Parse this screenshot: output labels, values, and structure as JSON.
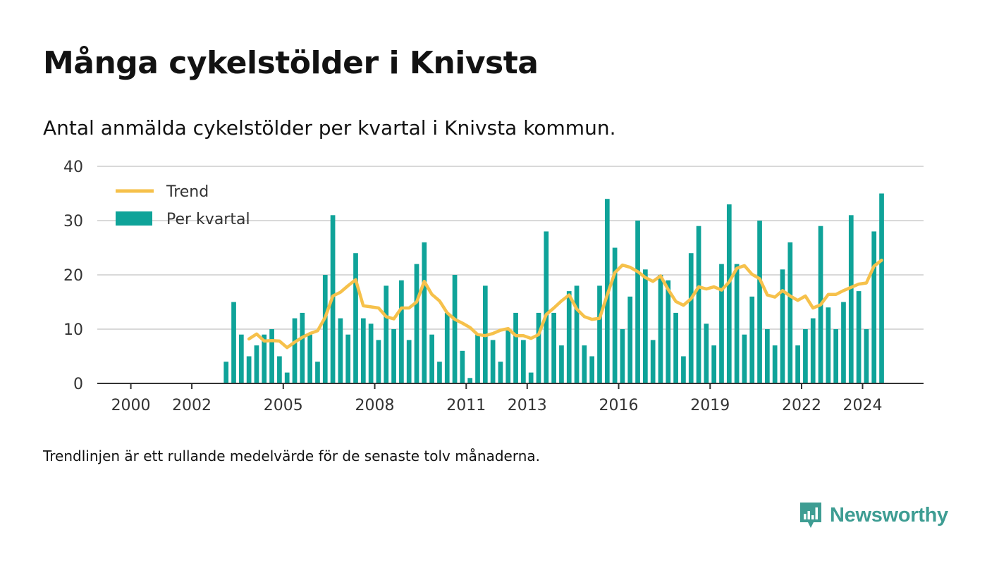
{
  "title": "Många cykelstölder i Knivsta",
  "subtitle": "Antal anmälda cykelstölder per kvartal i Knivsta kommun.",
  "footnote": "Trendlinjen är ett rullande medelvärde för de senaste tolv månaderna.",
  "brand": {
    "name": "Newsworthy",
    "icon": "newsworthy-logo-icon",
    "color": "#3e9d93"
  },
  "chart_data": {
    "type": "bar",
    "title": "Många cykelstölder i Knivsta",
    "xlabel": "",
    "ylabel": "",
    "ylim": [
      0,
      40
    ],
    "yticks": [
      0,
      10,
      20,
      30,
      40
    ],
    "xticks": [
      "2000",
      "2002",
      "2005",
      "2008",
      "2011",
      "2013",
      "2016",
      "2019",
      "2022",
      "2024"
    ],
    "grid": true,
    "legend_position": "top-left",
    "colors": {
      "bars": "#0fa399",
      "trend": "#f6c14b",
      "grid": "#d9d9d9",
      "axis": "#333333"
    },
    "series": [
      {
        "name": "Per kvartal",
        "type": "bar",
        "x": [
          "2003-Q1",
          "2003-Q2",
          "2003-Q3",
          "2003-Q4",
          "2004-Q1",
          "2004-Q2",
          "2004-Q3",
          "2004-Q4",
          "2005-Q1",
          "2005-Q2",
          "2005-Q3",
          "2005-Q4",
          "2006-Q1",
          "2006-Q2",
          "2006-Q3",
          "2006-Q4",
          "2007-Q1",
          "2007-Q2",
          "2007-Q3",
          "2007-Q4",
          "2008-Q1",
          "2008-Q2",
          "2008-Q3",
          "2008-Q4",
          "2009-Q1",
          "2009-Q2",
          "2009-Q3",
          "2009-Q4",
          "2010-Q1",
          "2010-Q2",
          "2010-Q3",
          "2010-Q4",
          "2011-Q1",
          "2011-Q2",
          "2011-Q3",
          "2011-Q4",
          "2012-Q1",
          "2012-Q2",
          "2012-Q3",
          "2012-Q4",
          "2013-Q1",
          "2013-Q2",
          "2013-Q3",
          "2013-Q4",
          "2014-Q1",
          "2014-Q2",
          "2014-Q3",
          "2014-Q4",
          "2015-Q1",
          "2015-Q2",
          "2015-Q3",
          "2015-Q4",
          "2016-Q1",
          "2016-Q2",
          "2016-Q3",
          "2016-Q4",
          "2017-Q1",
          "2017-Q2",
          "2017-Q3",
          "2017-Q4",
          "2018-Q1",
          "2018-Q2",
          "2018-Q3",
          "2018-Q4",
          "2019-Q1",
          "2019-Q2",
          "2019-Q3",
          "2019-Q4",
          "2020-Q1",
          "2020-Q2",
          "2020-Q3",
          "2020-Q4",
          "2021-Q1",
          "2021-Q2",
          "2021-Q3",
          "2021-Q4",
          "2022-Q1",
          "2022-Q2",
          "2022-Q3",
          "2022-Q4",
          "2023-Q1",
          "2023-Q2",
          "2023-Q3",
          "2023-Q4",
          "2024-Q1",
          "2024-Q2",
          "2024-Q3"
        ],
        "values": [
          4,
          15,
          9,
          5,
          7,
          9,
          10,
          5,
          2,
          12,
          13,
          9,
          4,
          20,
          31,
          12,
          9,
          24,
          12,
          11,
          8,
          18,
          10,
          19,
          8,
          22,
          26,
          9,
          4,
          13,
          20,
          6,
          1,
          9,
          18,
          8,
          4,
          10,
          13,
          8,
          2,
          13,
          28,
          13,
          7,
          17,
          18,
          7,
          5,
          18,
          34,
          25,
          10,
          16,
          30,
          21,
          8,
          20,
          19,
          13,
          5,
          24,
          29,
          11,
          7,
          22,
          33,
          22,
          9,
          16,
          30,
          10,
          7,
          21,
          26,
          7,
          10,
          12,
          29,
          14,
          10,
          15,
          31,
          17,
          10,
          28,
          35
        ]
      },
      {
        "name": "Trend",
        "type": "line",
        "x": [
          "2003-Q4",
          "2004-Q1",
          "2004-Q2",
          "2004-Q3",
          "2004-Q4",
          "2005-Q1",
          "2005-Q2",
          "2005-Q3",
          "2005-Q4",
          "2006-Q1",
          "2006-Q2",
          "2006-Q3",
          "2006-Q4",
          "2007-Q1",
          "2007-Q2",
          "2007-Q3",
          "2007-Q4",
          "2008-Q1",
          "2008-Q2",
          "2008-Q3",
          "2008-Q4",
          "2009-Q1",
          "2009-Q2",
          "2009-Q3",
          "2009-Q4",
          "2010-Q1",
          "2010-Q2",
          "2010-Q3",
          "2010-Q4",
          "2011-Q1",
          "2011-Q2",
          "2011-Q3",
          "2011-Q4",
          "2012-Q1",
          "2012-Q2",
          "2012-Q3",
          "2012-Q4",
          "2013-Q1",
          "2013-Q2",
          "2013-Q3",
          "2013-Q4",
          "2014-Q1",
          "2014-Q2",
          "2014-Q3",
          "2014-Q4",
          "2015-Q1",
          "2015-Q2",
          "2015-Q3",
          "2015-Q4",
          "2016-Q1",
          "2016-Q2",
          "2016-Q3",
          "2016-Q4",
          "2017-Q1",
          "2017-Q2",
          "2017-Q3",
          "2017-Q4",
          "2018-Q1",
          "2018-Q2",
          "2018-Q3",
          "2018-Q4",
          "2019-Q1",
          "2019-Q2",
          "2019-Q3",
          "2019-Q4",
          "2020-Q1",
          "2020-Q2",
          "2020-Q3",
          "2020-Q4",
          "2021-Q1",
          "2021-Q2",
          "2021-Q3",
          "2021-Q4",
          "2022-Q1",
          "2022-Q2",
          "2022-Q3",
          "2022-Q4",
          "2023-Q1",
          "2023-Q2",
          "2023-Q3",
          "2023-Q4",
          "2024-Q1",
          "2024-Q2",
          "2024-Q3"
        ],
        "values": [
          8.2,
          9.1,
          7.8,
          7.9,
          7.8,
          6.6,
          7.6,
          8.5,
          9.2,
          9.7,
          12.2,
          16.1,
          16.8,
          18.0,
          19.1,
          14.3,
          14.1,
          13.9,
          12.3,
          11.9,
          13.9,
          13.9,
          15.0,
          18.8,
          16.4,
          15.2,
          13.0,
          11.8,
          11.1,
          10.3,
          9.0,
          8.8,
          9.2,
          9.8,
          10.1,
          8.8,
          8.8,
          8.3,
          9.0,
          12.7,
          13.9,
          15.2,
          16.3,
          13.7,
          12.3,
          11.8,
          12.0,
          16.3,
          20.4,
          21.8,
          21.4,
          20.6,
          19.5,
          18.8,
          19.8,
          17.3,
          15.1,
          14.4,
          15.6,
          17.8,
          17.4,
          17.8,
          17.2,
          18.7,
          21.2,
          21.7,
          20.1,
          19.3,
          16.3,
          15.9,
          17.1,
          16.1,
          15.3,
          16.1,
          13.9,
          14.5,
          16.4,
          16.4,
          17.1,
          17.7,
          18.3,
          18.5,
          21.6,
          22.7
        ]
      }
    ]
  }
}
